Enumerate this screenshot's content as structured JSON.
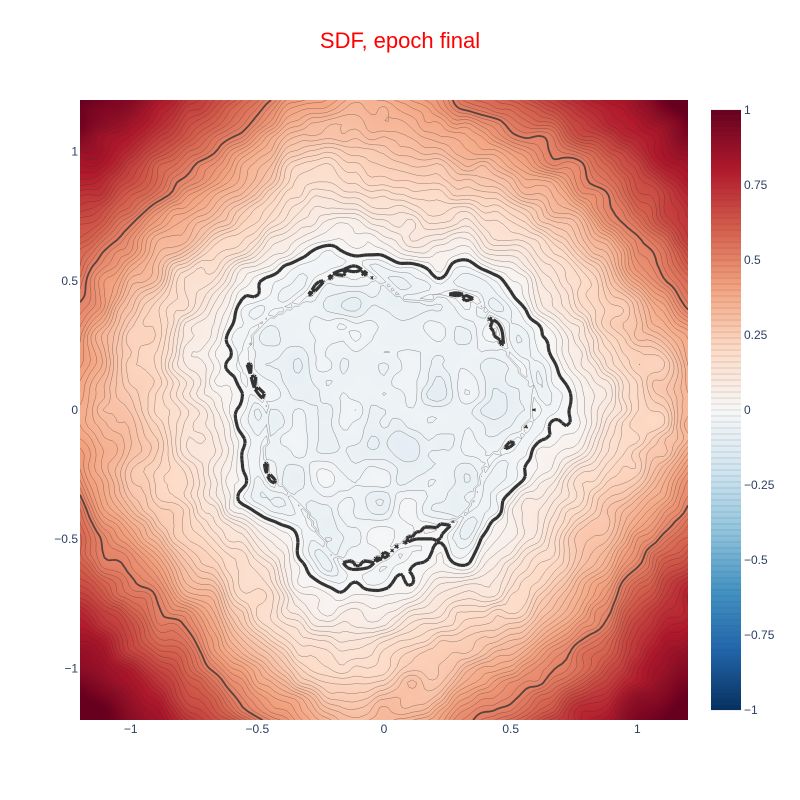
{
  "chart_data": {
    "type": "heatmap",
    "subtype": "contour",
    "title": "SDF, epoch final",
    "xlabel": "",
    "ylabel": "",
    "xlim": [
      -1.2,
      1.2
    ],
    "ylim": [
      -1.2,
      1.2
    ],
    "x_ticks": [
      -1,
      -0.5,
      0,
      0.5,
      1
    ],
    "x_tick_labels": [
      "−1",
      "−0.5",
      "0",
      "0.5",
      "1"
    ],
    "y_ticks": [
      1,
      0.5,
      0,
      -0.5,
      -1
    ],
    "y_tick_labels": [
      "1",
      "0.5",
      "0",
      "−0.5",
      "−1"
    ],
    "z_range": [
      -1,
      1
    ],
    "colorscale": "RdBu (reversed)",
    "colorscale_stops": [
      "#053061",
      "#2166ac",
      "#4393c3",
      "#92c5de",
      "#d1e5f0",
      "#f7f7f7",
      "#fddbc7",
      "#f4a582",
      "#d6604d",
      "#b2182b",
      "#67001f"
    ],
    "colorbar": {
      "ticks": [
        1,
        0.75,
        0.5,
        0.25,
        0,
        -0.25,
        -0.5,
        -0.75,
        -1
      ],
      "tick_labels": [
        "1",
        "0.75",
        "0.5",
        "0.25",
        "0",
        "−0.25",
        "−0.5",
        "−0.75",
        "−1"
      ]
    },
    "contour_spacing": 0.02,
    "highlighted_levels": [
      0,
      0.5
    ],
    "grid": false,
    "legend": "colorbar-right",
    "title_color": "#ff0000",
    "tick_color": "#2a3f5f",
    "contour_line_color": "#333333",
    "description_note": "Signed distance field; zero-level set forms a noisy broken ring near radius 0.6; values increase toward corners."
  }
}
